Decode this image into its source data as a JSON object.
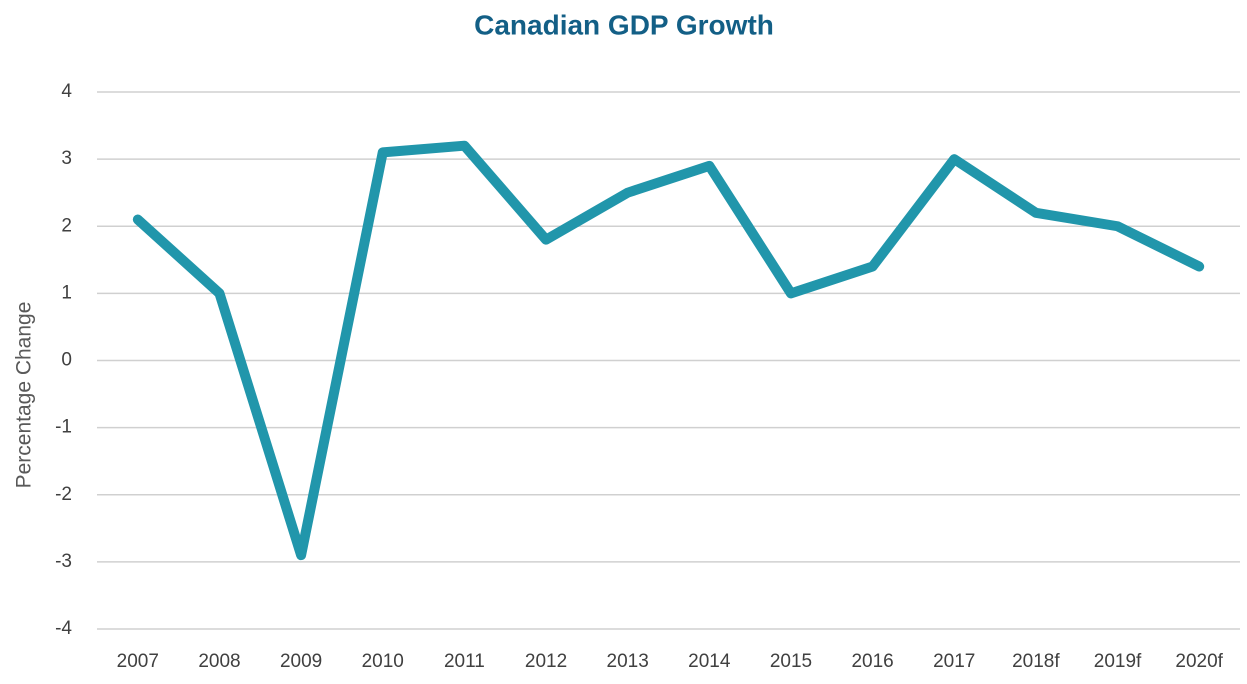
{
  "chart_data": {
    "type": "line",
    "title": "Canadian GDP Growth",
    "y_label": "Percentage Change",
    "categories": [
      "2007",
      "2008",
      "2009",
      "2010",
      "2011",
      "2012",
      "2013",
      "2014",
      "2015",
      "2016",
      "2017",
      "2018f",
      "2019f",
      "2020f"
    ],
    "series": [
      {
        "name": "GDP Growth",
        "color": "#2196ab",
        "values": [
          2.1,
          1.0,
          -2.9,
          3.1,
          3.2,
          1.8,
          2.5,
          2.9,
          1.0,
          1.4,
          3.0,
          2.2,
          2.0,
          1.4
        ]
      }
    ],
    "ylim": [
      -4,
      4
    ],
    "yticks": [
      -4,
      -3,
      -2,
      -1,
      0,
      1,
      2,
      3,
      4
    ],
    "grid": true
  }
}
